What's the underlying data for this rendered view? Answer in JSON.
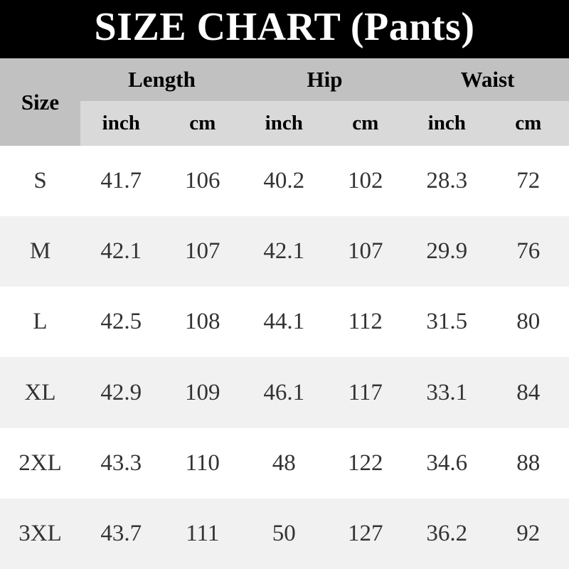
{
  "title": "SIZE CHART (Pants)",
  "colors": {
    "title_bg": "#000000",
    "title_text": "#ffffff",
    "group_header_bg": "#c1c1c1",
    "unit_header_bg": "#d9d9d9",
    "row_bg": "#ffffff",
    "row_alt_bg": "#f1f1f1",
    "text": "#333333"
  },
  "table": {
    "size_header": "Size",
    "groups": [
      {
        "label": "Length"
      },
      {
        "label": "Hip"
      },
      {
        "label": "Waist"
      }
    ],
    "unit_headers": [
      "inch",
      "cm",
      "inch",
      "cm",
      "inch",
      "cm"
    ],
    "rows": [
      {
        "size": "S",
        "values": [
          "41.7",
          "106",
          "40.2",
          "102",
          "28.3",
          "72"
        ]
      },
      {
        "size": "M",
        "values": [
          "42.1",
          "107",
          "42.1",
          "107",
          "29.9",
          "76"
        ]
      },
      {
        "size": "L",
        "values": [
          "42.5",
          "108",
          "44.1",
          "112",
          "31.5",
          "80"
        ]
      },
      {
        "size": "XL",
        "values": [
          "42.9",
          "109",
          "46.1",
          "117",
          "33.1",
          "84"
        ]
      },
      {
        "size": "2XL",
        "values": [
          "43.3",
          "110",
          "48",
          "122",
          "34.6",
          "88"
        ]
      },
      {
        "size": "3XL",
        "values": [
          "43.7",
          "111",
          "50",
          "127",
          "36.2",
          "92"
        ]
      }
    ]
  },
  "chart_data": {
    "type": "table",
    "title": "SIZE CHART (Pants)",
    "columns": [
      "Size",
      "Length (inch)",
      "Length (cm)",
      "Hip (inch)",
      "Hip (cm)",
      "Waist (inch)",
      "Waist (cm)"
    ],
    "rows": [
      [
        "S",
        41.7,
        106,
        40.2,
        102,
        28.3,
        72
      ],
      [
        "M",
        42.1,
        107,
        42.1,
        107,
        29.9,
        76
      ],
      [
        "L",
        42.5,
        108,
        44.1,
        112,
        31.5,
        80
      ],
      [
        "XL",
        42.9,
        109,
        46.1,
        117,
        33.1,
        84
      ],
      [
        "2XL",
        43.3,
        110,
        48,
        122,
        34.6,
        88
      ],
      [
        "3XL",
        43.7,
        111,
        50,
        127,
        36.2,
        92
      ]
    ]
  }
}
